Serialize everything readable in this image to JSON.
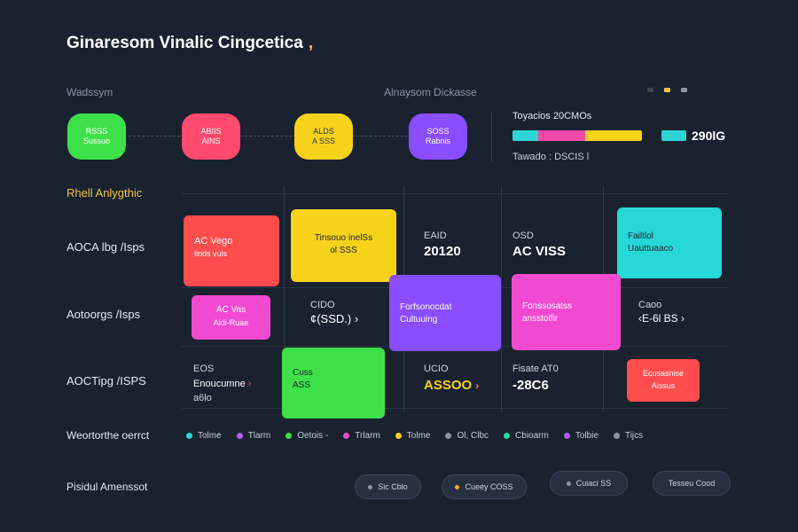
{
  "header": {
    "title": "Ginaresom Vinalic Cingcetica",
    "title_accent": ",",
    "left_label": "Wadssym",
    "center_label": "Alnaysom Dickasse",
    "corner_dots": [
      "#3a4558",
      "#f4c542",
      "#8c96a8"
    ]
  },
  "flow": {
    "nodes": [
      {
        "line1": "RSSS",
        "line2": "Sussuo",
        "color": "#3ee04a"
      },
      {
        "line1": "ABIIS",
        "line2": "AINS",
        "color": "#ff4a6e"
      },
      {
        "line1": "ALDS",
        "line2": "A SSS",
        "color": "#f7d21b"
      },
      {
        "line1": "SOSS",
        "line2": "Rabnis",
        "color": "#8a4dff"
      }
    ]
  },
  "progress": {
    "label": "Toyacios 20CMOs",
    "value_text": "290lG",
    "sublabel": "Tawado : DSCIS",
    "sublabel_suffix": "l",
    "segments": [
      {
        "color": "#2fd4d4",
        "fraction": 0.2
      },
      {
        "color": "#f14aa8",
        "fraction": 0.36
      },
      {
        "color": "#f7d21b",
        "fraction": 0.44
      }
    ],
    "swatch_color": "#2fd4d4"
  },
  "section_label": "Rhell Anlygthic",
  "rows": [
    {
      "label": "AOCA lbg /Isps"
    },
    {
      "label": "Aotoorgs /Isps"
    },
    {
      "label": "AOCTipg /ISPS"
    }
  ],
  "boxes": {
    "r1_red": {
      "line1": "AC Vego",
      "line2": "linds vuls",
      "color": "#ff4d4d"
    },
    "r1_yellow": {
      "line1": "Tinsouo inelSs",
      "line2": "ol SSS",
      "color": "#f7d21b"
    },
    "r1_cyan": {
      "line1": "Failtlol",
      "line2": "Uauttuaaco",
      "color": "#27d6d6"
    },
    "r2_magenta": {
      "line1": "AC Vas",
      "line2": "Aldi-Ruae",
      "color": "#f14ad0"
    },
    "r2_purple": {
      "line1": "Forfsonocdat",
      "line2": "Cultuuing",
      "color": "#8a4dff"
    },
    "r2_pink": {
      "line1": "Fonssosatss",
      "line2": "ansstolfir",
      "color": "#f14ad0"
    },
    "r3_green": {
      "line1": "Cuss",
      "line2": "ASS",
      "color": "#3ee04a"
    },
    "r3_red": {
      "line1": "Ecusasnise",
      "line2": "Aissus",
      "color": "#ff4d4d"
    }
  },
  "cells": {
    "r1_c3_top": "EAID",
    "r1_c3_value": "20120",
    "r1_c4_top": "OSD",
    "r1_c4_value": "AC VISS",
    "r2_c2_top": "CIDO",
    "r2_c2_value": "¢(SSD.)",
    "r2_c2_arrow": "›",
    "r2_c6_top": "Caoo",
    "r2_c6_value": "‹E-6l BS",
    "r2_c6_arrow": "›",
    "r3_c1_top": "EOS",
    "r3_c1_line2": "Enoucumne",
    "r3_c1_line3": "a6lo",
    "r3_c1_arrow": "›",
    "r3_c3_top": "UCIO",
    "r3_c3_value": "ASSOO",
    "r3_c3_arrow": "›",
    "r3_c4_top": "Fisate AT0",
    "r3_c4_value": "-28C6"
  },
  "legend": {
    "label": "Weortorthe oerrct",
    "items": [
      {
        "label": "Tolme",
        "color": "#2fd4d4"
      },
      {
        "label": "Tlarm",
        "color": "#b65df2"
      },
      {
        "label": "Oetois -",
        "color": "#3ee04a"
      },
      {
        "label": "Trlarm",
        "color": "#f14ad0"
      },
      {
        "label": "Tolme",
        "color": "#f7d21b"
      },
      {
        "label": "Ol, Clbc",
        "color": "#8c96a8"
      },
      {
        "label": "Cbioarm",
        "color": "#27d6a0"
      },
      {
        "label": "Tolbie",
        "color": "#b65df2"
      },
      {
        "label": "Tijcs",
        "color": "#8c96a8"
      }
    ]
  },
  "footer": {
    "label": "Pisidul Amenssot",
    "chips": [
      {
        "label": "Sic Cblo",
        "dot": "#8c96a8"
      },
      {
        "label": "Cueey COSS",
        "dot": "#f4a742"
      },
      {
        "label": "Cuiaci SS",
        "dot": "#8c96a8"
      },
      {
        "label": "Tesseu Cood",
        "dot": ""
      }
    ]
  }
}
